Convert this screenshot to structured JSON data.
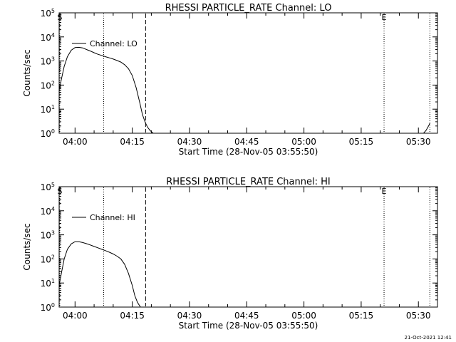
{
  "chart_data": [
    {
      "type": "line",
      "title": "RHESSI PARTICLE_RATE Channel: LO",
      "xlabel": "Start Time (28-Nov-05 03:55:50)",
      "ylabel": "Counts/sec",
      "yscale": "log",
      "ylim": [
        1,
        100000
      ],
      "xlim": [
        "03:55:50",
        "05:35:00"
      ],
      "x_ticks": [
        "04:00",
        "04:15",
        "04:30",
        "04:45",
        "05:00",
        "05:15",
        "05:30"
      ],
      "y_ticks": [
        "10^0",
        "10^1",
        "10^2",
        "10^3",
        "10^4",
        "10^5"
      ],
      "legend": "top-left",
      "markers": [
        {
          "label": "S",
          "time": "03:56:00",
          "style": "dotted"
        },
        {
          "label": "",
          "time": "04:07:30",
          "style": "dotted"
        },
        {
          "label": "",
          "time": "04:18:30",
          "style": "dashed"
        },
        {
          "label": "E",
          "time": "05:21:00",
          "style": "dotted"
        },
        {
          "label": "",
          "time": "05:33:00",
          "style": "dotted"
        }
      ],
      "series": [
        {
          "name": "Channel: LO",
          "segments": [
            {
              "x": [
                "03:55:50",
                "03:56:30",
                "03:57:10",
                "03:58:00",
                "03:59:00",
                "04:00:00",
                "04:01:00",
                "04:02:00",
                "04:03:00",
                "04:04:00",
                "04:05:00",
                "04:06:00",
                "04:07:00",
                "04:08:00",
                "04:09:00",
                "04:10:00",
                "04:11:00",
                "04:12:00",
                "04:13:00",
                "04:14:00",
                "04:15:00",
                "04:16:00",
                "04:17:00",
                "04:17:40",
                "04:18:20",
                "04:19:00",
                "04:19:40",
                "04:20:30"
              ],
              "y": [
                60,
                200,
                600,
                1500,
                2800,
                3600,
                3700,
                3500,
                3000,
                2600,
                2200,
                1900,
                1700,
                1500,
                1350,
                1200,
                1050,
                900,
                700,
                480,
                250,
                80,
                18,
                6,
                3,
                1.8,
                1.3,
                1.0
              ]
            },
            {
              "x": [
                "05:31:20",
                "05:32:00",
                "05:32:40",
                "05:33:00"
              ],
              "y": [
                1.0,
                1.3,
                2.0,
                2.6
              ]
            }
          ]
        }
      ]
    },
    {
      "type": "line",
      "title": "RHESSI PARTICLE_RATE Channel: HI",
      "xlabel": "Start Time (28-Nov-05 03:55:50)",
      "ylabel": "Counts/sec",
      "yscale": "log",
      "ylim": [
        1,
        100000
      ],
      "xlim": [
        "03:55:50",
        "05:35:00"
      ],
      "x_ticks": [
        "04:00",
        "04:15",
        "04:30",
        "04:45",
        "05:00",
        "05:15",
        "05:30"
      ],
      "y_ticks": [
        "10^0",
        "10^1",
        "10^2",
        "10^3",
        "10^4",
        "10^5"
      ],
      "legend": "top-left",
      "markers": [
        {
          "label": "S",
          "time": "03:56:00",
          "style": "dotted"
        },
        {
          "label": "",
          "time": "04:07:30",
          "style": "dotted"
        },
        {
          "label": "",
          "time": "04:18:30",
          "style": "dashed"
        },
        {
          "label": "E",
          "time": "05:21:00",
          "style": "dotted"
        },
        {
          "label": "",
          "time": "05:33:00",
          "style": "dotted"
        }
      ],
      "series": [
        {
          "name": "Channel: HI",
          "segments": [
            {
              "x": [
                "03:55:50",
                "03:56:30",
                "03:57:10",
                "03:58:00",
                "03:59:00",
                "04:00:00",
                "04:01:00",
                "04:02:00",
                "04:03:00",
                "04:04:00",
                "04:05:00",
                "04:06:00",
                "04:07:00",
                "04:08:00",
                "04:09:00",
                "04:10:00",
                "04:11:00",
                "04:12:00",
                "04:13:00",
                "04:14:00",
                "04:15:00",
                "04:15:40",
                "04:16:20",
                "04:16:50",
                "04:17:10"
              ],
              "y": [
                8,
                30,
                100,
                250,
                420,
                520,
                520,
                480,
                430,
                380,
                330,
                290,
                250,
                220,
                190,
                160,
                130,
                100,
                60,
                25,
                8,
                3,
                1.6,
                1.2,
                1.0
              ]
            }
          ]
        }
      ]
    }
  ],
  "timestamp": "21-Oct-2021 12:41"
}
